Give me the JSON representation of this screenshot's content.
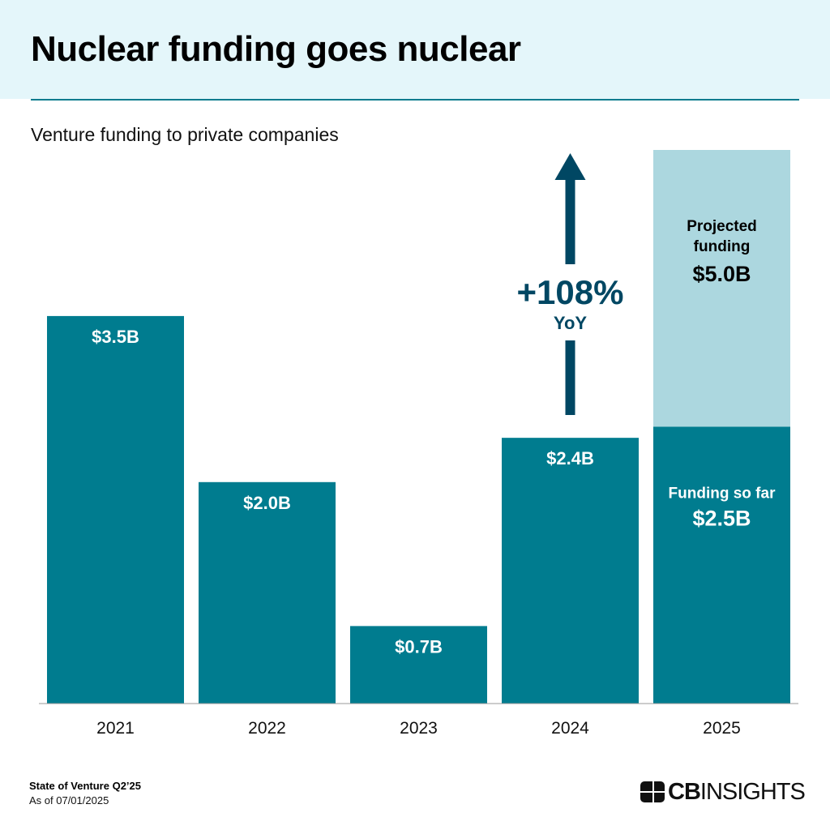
{
  "header": {
    "title": "Nuclear funding goes nuclear",
    "subtitle": "Venture funding to private companies"
  },
  "footer": {
    "source": "State of Venture Q2’25",
    "as_of": "As of 07/01/2025",
    "logo": "CBINSIGHTS"
  },
  "colors": {
    "bar": "#007c8f",
    "projected": "#acd7df",
    "arrow": "#004763",
    "header_bg": "#e4f6fa"
  },
  "chart_data": {
    "type": "bar",
    "title": "Nuclear funding goes nuclear",
    "subtitle": "Venture funding to private companies",
    "categories": [
      "2021",
      "2022",
      "2023",
      "2024",
      "2025"
    ],
    "unit": "$B",
    "ylim": [
      0,
      5.0
    ],
    "grid": false,
    "series": [
      {
        "name": "Funding so far",
        "values": [
          3.5,
          2.0,
          0.7,
          2.4,
          2.5
        ],
        "labels": [
          "$3.5B",
          "$2.0B",
          "$0.7B",
          "$2.4B",
          "$2.5B"
        ]
      },
      {
        "name": "Projected funding",
        "values": [
          null,
          null,
          null,
          null,
          5.0
        ],
        "labels": [
          "",
          "",
          "",
          "",
          "$5.0B"
        ]
      }
    ],
    "annotation": {
      "text": "+108%",
      "subtext": "YoY",
      "category": "2024"
    }
  }
}
